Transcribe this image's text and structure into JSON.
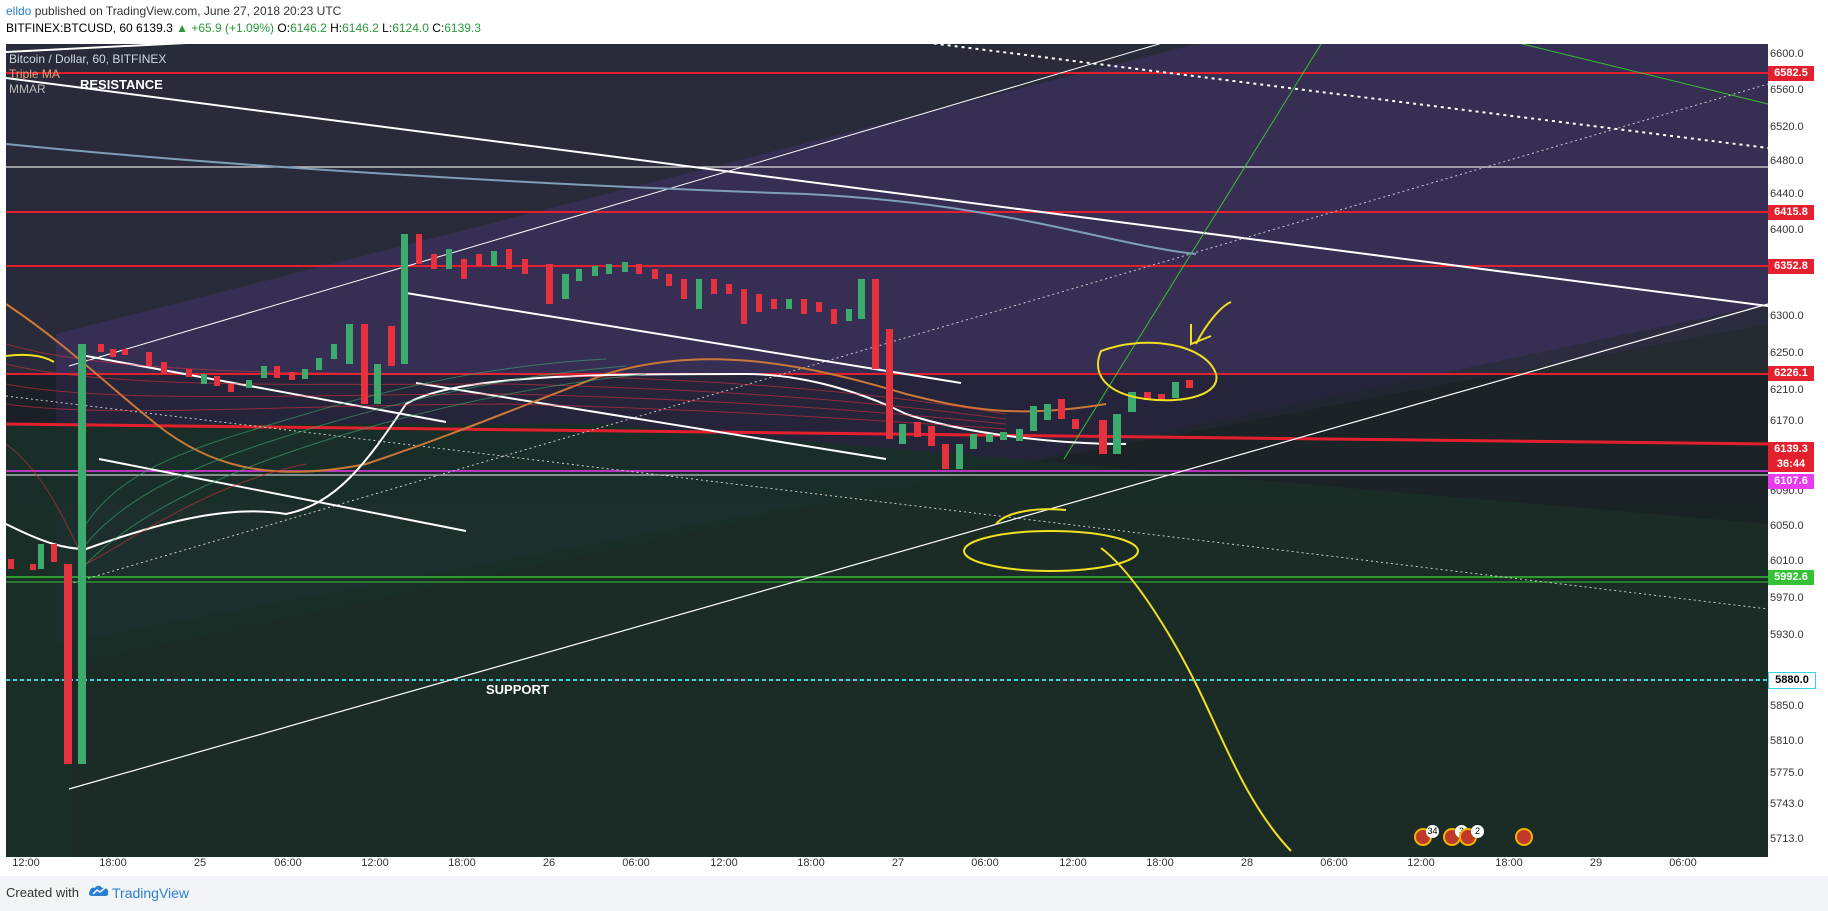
{
  "header": {
    "author": "elldo",
    "published": "published on TradingView.com, June 27, 2018 20:23 UTC",
    "symbol": "BITFINEX:BTCUSD, 60",
    "last": "6139.3",
    "change": "+65.9 (+1.09%)",
    "o_label": "O:",
    "o_value": "6146.2",
    "h_label": "H:",
    "h_value": "6146.2",
    "l_label": "L:",
    "l_value": "6124.0",
    "c_label": "C:",
    "c_value": "6139.3"
  },
  "legend": {
    "title": "Bitcoin / Dollar, 60, BITFINEX",
    "study1": "Triple MA",
    "study2": "MMAR"
  },
  "annotations": {
    "resistance": "RESISTANCE",
    "support": "SUPPORT"
  },
  "price_axis": {
    "ticks": [
      "6600.0",
      "6560.0",
      "6520.0",
      "6480.0",
      "6440.0",
      "6400.0",
      "6300.0",
      "6250.0",
      "6210.0",
      "6170.0",
      "6090.0",
      "6050.0",
      "6010.0",
      "5970.0",
      "5930.0",
      "5850.0",
      "5810.0",
      "5775.0",
      "5743.0",
      "5713.0"
    ],
    "badges": [
      {
        "text": "6582.5",
        "color": "#e5202e"
      },
      {
        "text": "6415.8",
        "color": "#e5202e"
      },
      {
        "text": "6352.8",
        "color": "#e5202e"
      },
      {
        "text": "6226.1",
        "color": "#e5202e"
      },
      {
        "text": "6139.3",
        "color": "#e5202e"
      },
      {
        "text": "36:44",
        "color": "#e5202e"
      },
      {
        "text": "6107.6",
        "color": "#e83aef"
      },
      {
        "text": "5992.6",
        "color": "#35c135"
      },
      {
        "text": "5880.0",
        "color": "#ffffff"
      }
    ]
  },
  "time_axis": {
    "labels": [
      "12:00",
      "18:00",
      "25",
      "06:00",
      "12:00",
      "18:00",
      "26",
      "06:00",
      "12:00",
      "18:00",
      "27",
      "06:00",
      "12:00",
      "18:00",
      "28",
      "06:00",
      "12:00",
      "18:00",
      "29",
      "06:00"
    ]
  },
  "events": {
    "counts": [
      "34",
      "3",
      "2"
    ]
  },
  "footer": {
    "created": "Created with",
    "brand": "TradingView"
  },
  "colors": {
    "background": "#1a1f24",
    "resistance_line": "#e5202e",
    "support_line": "#35c135",
    "dashed_support": "#35d8e0",
    "bull_candle": "#3dab6e",
    "bear_candle": "#e5323e",
    "drawing_yellow": "#f0e020"
  }
}
